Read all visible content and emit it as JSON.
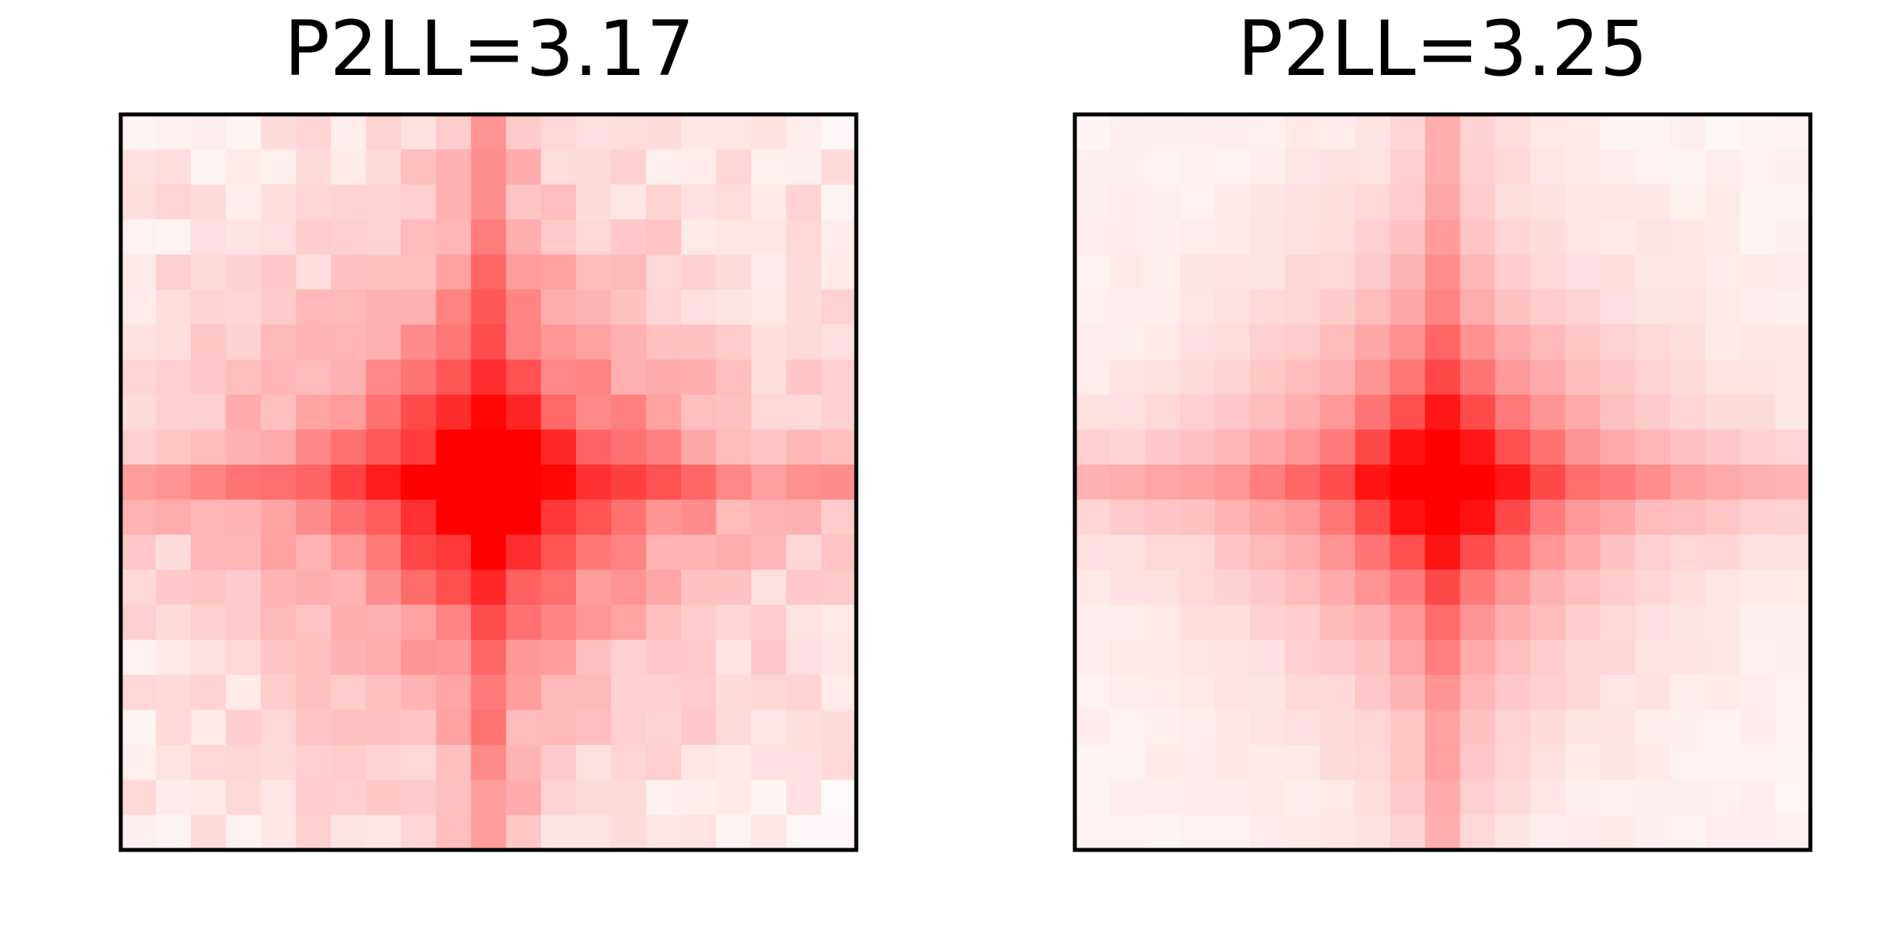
{
  "chart_data": [
    {
      "type": "heatmap",
      "title": "P2LL=3.17",
      "colormap": {
        "low": "#ffffff",
        "high": "#ff0000"
      },
      "grid": false,
      "axes_ticks": false,
      "rows": 21,
      "cols": 21,
      "peak": {
        "row": 10,
        "col": 10
      },
      "spread": 3.8,
      "cross_strength": 0.35,
      "background": 0.06,
      "noise": 0.07,
      "seed": 11
    },
    {
      "type": "heatmap",
      "title": "P2LL=3.25",
      "colormap": {
        "low": "#ffffff",
        "high": "#ff0000"
      },
      "grid": false,
      "axes_ticks": false,
      "rows": 21,
      "cols": 21,
      "peak": {
        "row": 10,
        "col": 10
      },
      "spread": 3.0,
      "cross_strength": 0.32,
      "background": 0.04,
      "noise": 0.02,
      "seed": 29
    }
  ]
}
